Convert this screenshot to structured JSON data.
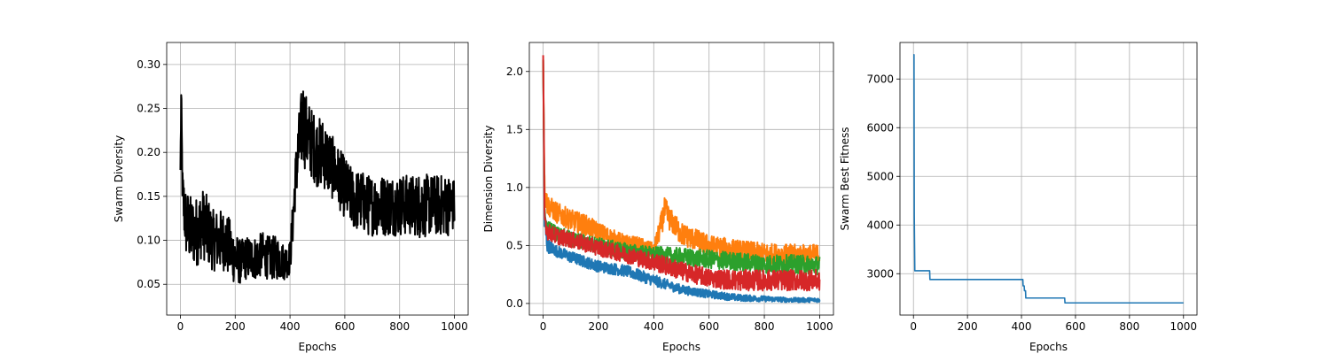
{
  "chart_data": [
    {
      "type": "line",
      "xlabel": "Epochs",
      "ylabel": "Swarm Diversity",
      "xlim": [
        -50,
        1050
      ],
      "ylim": [
        0.015,
        0.325
      ],
      "xticks": [
        0,
        200,
        400,
        600,
        800,
        1000
      ],
      "yticks": [
        0.05,
        0.1,
        0.15,
        0.2,
        0.25,
        0.3
      ],
      "grid": true,
      "series": [
        {
          "color": "#000000",
          "stroke_style": "noisy",
          "x": [
            0,
            3,
            8,
            20,
            40,
            60,
            80,
            100,
            120,
            140,
            160,
            180,
            200,
            220,
            240,
            260,
            280,
            300,
            320,
            340,
            360,
            380,
            400,
            410,
            420,
            430,
            440,
            445,
            460,
            480,
            500,
            520,
            540,
            560,
            580,
            600,
            620,
            640,
            660,
            680,
            700,
            720,
            740,
            760,
            780,
            800,
            820,
            840,
            860,
            880,
            900,
            920,
            940,
            960,
            980,
            1000
          ],
          "y": [
            0.18,
            0.26,
            0.15,
            0.12,
            0.11,
            0.11,
            0.12,
            0.11,
            0.1,
            0.1,
            0.1,
            0.09,
            0.08,
            0.075,
            0.08,
            0.08,
            0.08,
            0.085,
            0.08,
            0.08,
            0.08,
            0.075,
            0.08,
            0.12,
            0.17,
            0.2,
            0.22,
            0.24,
            0.22,
            0.21,
            0.2,
            0.2,
            0.19,
            0.18,
            0.17,
            0.16,
            0.15,
            0.145,
            0.145,
            0.14,
            0.14,
            0.14,
            0.14,
            0.14,
            0.14,
            0.14,
            0.14,
            0.14,
            0.14,
            0.14,
            0.14,
            0.14,
            0.14,
            0.14,
            0.14,
            0.14
          ],
          "noise_amplitude": [
            0.02,
            0.02,
            0.035,
            0.04,
            0.04,
            0.04,
            0.04,
            0.04,
            0.035,
            0.035,
            0.035,
            0.035,
            0.03,
            0.025,
            0.025,
            0.025,
            0.025,
            0.025,
            0.025,
            0.025,
            0.025,
            0.02,
            0.02,
            0.025,
            0.03,
            0.04,
            0.045,
            0.05,
            0.045,
            0.04,
            0.04,
            0.04,
            0.04,
            0.035,
            0.035,
            0.035,
            0.035,
            0.035,
            0.035,
            0.035,
            0.035,
            0.035,
            0.035,
            0.035,
            0.035,
            0.035,
            0.035,
            0.035,
            0.035,
            0.04,
            0.035,
            0.035,
            0.035,
            0.035,
            0.035,
            0.03
          ]
        }
      ]
    },
    {
      "type": "line",
      "xlabel": "Epochs",
      "ylabel": "Dimension Diversity",
      "xlim": [
        -50,
        1050
      ],
      "ylim": [
        -0.1,
        2.25
      ],
      "xticks": [
        0,
        200,
        400,
        600,
        800,
        1000
      ],
      "yticks": [
        0.0,
        0.5,
        1.0,
        1.5,
        2.0
      ],
      "grid": true,
      "series": [
        {
          "color": "#1f77b4",
          "stroke_style": "noisy",
          "x": [
            0,
            5,
            15,
            50,
            100,
            200,
            300,
            400,
            500,
            600,
            700,
            800,
            900,
            1000
          ],
          "y": [
            2.1,
            0.7,
            0.5,
            0.45,
            0.4,
            0.32,
            0.28,
            0.2,
            0.12,
            0.08,
            0.05,
            0.04,
            0.03,
            0.03
          ],
          "noise_amplitude": [
            0.0,
            0.1,
            0.06,
            0.05,
            0.05,
            0.05,
            0.05,
            0.05,
            0.04,
            0.035,
            0.03,
            0.025,
            0.02,
            0.02
          ]
        },
        {
          "color": "#ff7f0e",
          "stroke_style": "noisy",
          "x": [
            0,
            5,
            15,
            50,
            100,
            150,
            200,
            250,
            300,
            350,
            400,
            420,
            440,
            460,
            500,
            600,
            700,
            800,
            900,
            1000
          ],
          "y": [
            2.1,
            1.0,
            0.85,
            0.78,
            0.72,
            0.68,
            0.62,
            0.56,
            0.52,
            0.5,
            0.45,
            0.62,
            0.8,
            0.72,
            0.6,
            0.5,
            0.46,
            0.43,
            0.42,
            0.42
          ],
          "noise_amplitude": [
            0.0,
            0.12,
            0.09,
            0.09,
            0.09,
            0.09,
            0.08,
            0.08,
            0.07,
            0.07,
            0.07,
            0.09,
            0.12,
            0.1,
            0.1,
            0.09,
            0.09,
            0.09,
            0.09,
            0.09
          ]
        },
        {
          "color": "#2ca02c",
          "stroke_style": "noisy",
          "x": [
            0,
            5,
            15,
            50,
            100,
            200,
            300,
            400,
            500,
            600,
            700,
            800,
            900,
            1000
          ],
          "y": [
            2.1,
            0.75,
            0.65,
            0.6,
            0.55,
            0.5,
            0.45,
            0.42,
            0.4,
            0.38,
            0.36,
            0.34,
            0.34,
            0.33
          ],
          "noise_amplitude": [
            0.0,
            0.08,
            0.07,
            0.07,
            0.07,
            0.07,
            0.07,
            0.07,
            0.08,
            0.08,
            0.08,
            0.08,
            0.08,
            0.08
          ]
        },
        {
          "color": "#d62728",
          "stroke_style": "noisy",
          "x": [
            0,
            5,
            15,
            50,
            100,
            200,
            300,
            400,
            500,
            600,
            700,
            800,
            900,
            1000
          ],
          "y": [
            2.14,
            0.75,
            0.62,
            0.58,
            0.55,
            0.48,
            0.42,
            0.36,
            0.28,
            0.22,
            0.2,
            0.2,
            0.2,
            0.2
          ],
          "noise_amplitude": [
            0.0,
            0.08,
            0.07,
            0.07,
            0.07,
            0.07,
            0.07,
            0.08,
            0.08,
            0.08,
            0.09,
            0.09,
            0.09,
            0.09
          ]
        }
      ]
    },
    {
      "type": "line",
      "xlabel": "Epochs",
      "ylabel": "Swarm Best Fitness",
      "xlim": [
        -50,
        1050
      ],
      "ylim": [
        2150,
        7750
      ],
      "xticks": [
        0,
        200,
        400,
        600,
        800,
        1000
      ],
      "yticks": [
        3000,
        4000,
        5000,
        6000,
        7000
      ],
      "grid": true,
      "series": [
        {
          "color": "#1f77b4",
          "stroke_style": "step",
          "x": [
            0,
            2,
            3,
            5,
            60,
            61,
            405,
            406,
            410,
            411,
            415,
            416,
            560,
            561,
            1000
          ],
          "y": [
            7500,
            7500,
            4200,
            3060,
            3060,
            2880,
            2880,
            2750,
            2750,
            2650,
            2650,
            2500,
            2500,
            2400,
            2400
          ]
        }
      ]
    }
  ]
}
